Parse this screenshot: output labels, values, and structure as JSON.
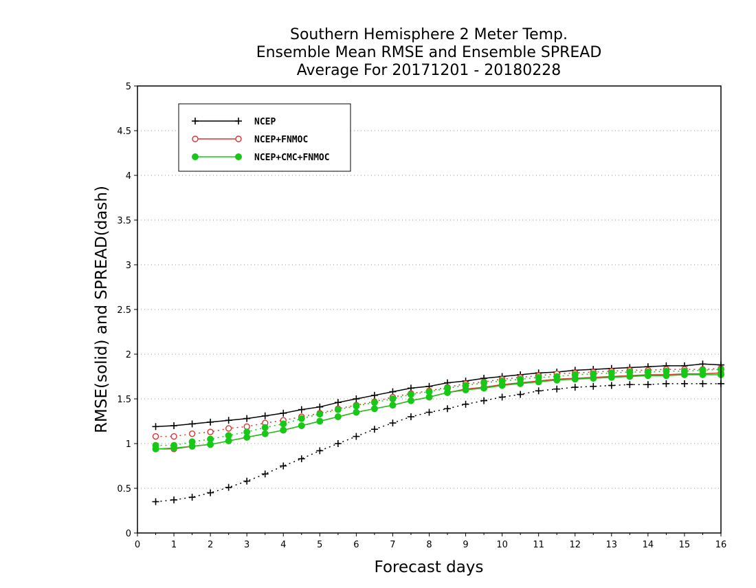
{
  "chart_data": {
    "type": "line",
    "title_lines": [
      "Southern Hemisphere 2 Meter Temp.",
      "Ensemble Mean RMSE and Ensemble SPREAD",
      "Average For 20171201 - 20180228"
    ],
    "xlabel": "Forecast days",
    "ylabel": "RMSE(solid) and SPREAD(dash)",
    "xlim": [
      0,
      16
    ],
    "ylim": [
      0,
      5
    ],
    "x_ticks": [
      0,
      1,
      2,
      3,
      4,
      5,
      6,
      7,
      8,
      9,
      10,
      11,
      12,
      13,
      14,
      15,
      16
    ],
    "y_ticks": [
      0,
      0.5,
      1,
      1.5,
      2,
      2.5,
      3,
      3.5,
      4,
      4.5,
      5
    ],
    "grid": "horizontal-dotted",
    "legend_position": "top-left",
    "x": [
      0.5,
      1,
      1.5,
      2,
      2.5,
      3,
      3.5,
      4,
      4.5,
      5,
      5.5,
      6,
      6.5,
      7,
      7.5,
      8,
      8.5,
      9,
      9.5,
      10,
      10.5,
      11,
      11.5,
      12,
      12.5,
      13,
      13.5,
      14,
      14.5,
      15,
      15.5,
      16
    ],
    "series": [
      {
        "name": "NCEP",
        "color": "#000000",
        "marker": "plus",
        "rmse": [
          1.19,
          1.2,
          1.22,
          1.24,
          1.26,
          1.28,
          1.31,
          1.34,
          1.38,
          1.41,
          1.46,
          1.5,
          1.54,
          1.58,
          1.62,
          1.64,
          1.68,
          1.7,
          1.73,
          1.75,
          1.77,
          1.79,
          1.8,
          1.82,
          1.83,
          1.84,
          1.85,
          1.86,
          1.87,
          1.87,
          1.89,
          1.88
        ],
        "spread": [
          0.35,
          0.37,
          0.4,
          0.45,
          0.51,
          0.58,
          0.66,
          0.75,
          0.83,
          0.92,
          1.0,
          1.08,
          1.16,
          1.23,
          1.3,
          1.35,
          1.39,
          1.44,
          1.48,
          1.52,
          1.55,
          1.59,
          1.61,
          1.63,
          1.64,
          1.65,
          1.66,
          1.66,
          1.67,
          1.67,
          1.67,
          1.67
        ]
      },
      {
        "name": "NCEP+FNMOC",
        "color": "#e03030",
        "marker": "open-circle",
        "rmse": [
          0.94,
          0.94,
          0.97,
          0.99,
          1.03,
          1.07,
          1.11,
          1.15,
          1.2,
          1.25,
          1.3,
          1.35,
          1.39,
          1.43,
          1.48,
          1.52,
          1.57,
          1.61,
          1.63,
          1.66,
          1.68,
          1.7,
          1.72,
          1.73,
          1.74,
          1.75,
          1.76,
          1.77,
          1.77,
          1.78,
          1.78,
          1.79
        ],
        "spread": [
          1.08,
          1.08,
          1.11,
          1.13,
          1.17,
          1.19,
          1.23,
          1.26,
          1.3,
          1.34,
          1.39,
          1.43,
          1.47,
          1.52,
          1.56,
          1.59,
          1.63,
          1.67,
          1.69,
          1.72,
          1.74,
          1.76,
          1.78,
          1.79,
          1.8,
          1.81,
          1.82,
          1.82,
          1.83,
          1.83,
          1.83,
          1.84
        ]
      },
      {
        "name": "NCEP+CMC+FNMOC",
        "color": "#18c818",
        "marker": "filled-circle",
        "rmse": [
          0.94,
          0.95,
          0.97,
          0.99,
          1.03,
          1.07,
          1.11,
          1.15,
          1.2,
          1.25,
          1.3,
          1.35,
          1.39,
          1.43,
          1.48,
          1.52,
          1.57,
          1.6,
          1.62,
          1.65,
          1.67,
          1.69,
          1.71,
          1.72,
          1.73,
          1.74,
          1.75,
          1.76,
          1.76,
          1.77,
          1.77,
          1.77
        ],
        "spread": [
          0.98,
          0.98,
          1.02,
          1.05,
          1.09,
          1.13,
          1.18,
          1.22,
          1.28,
          1.33,
          1.38,
          1.42,
          1.46,
          1.5,
          1.55,
          1.58,
          1.62,
          1.65,
          1.68,
          1.7,
          1.72,
          1.74,
          1.75,
          1.77,
          1.78,
          1.79,
          1.8,
          1.8,
          1.81,
          1.81,
          1.82,
          1.83
        ]
      }
    ]
  }
}
